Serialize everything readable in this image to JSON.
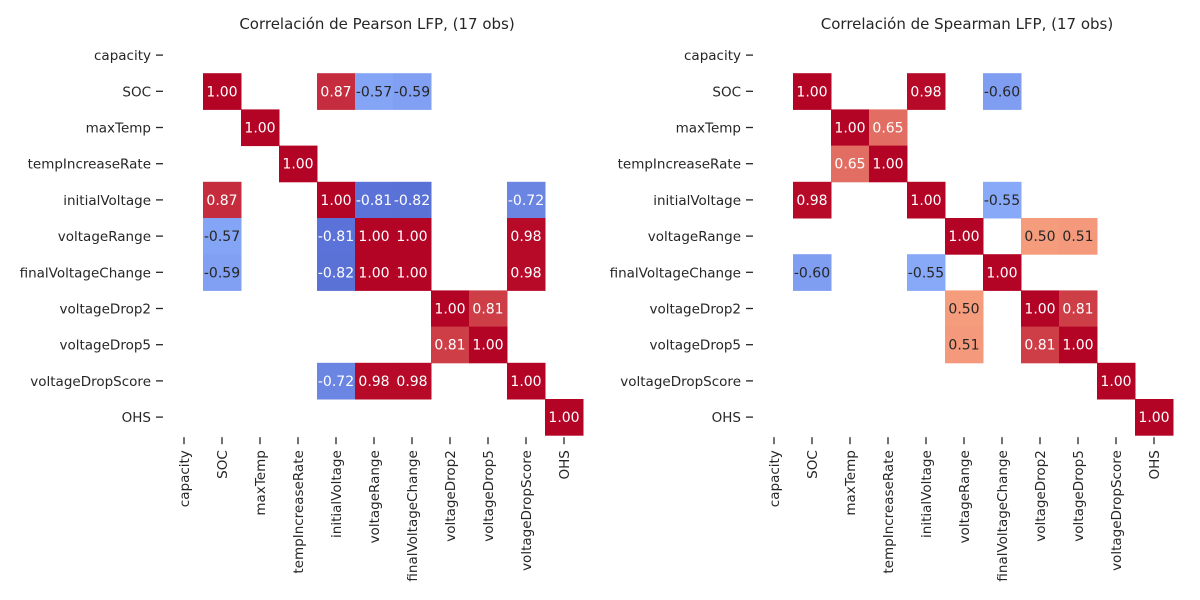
{
  "chart_data": [
    {
      "type": "heatmap",
      "title": "Correlación de Pearson LFP, (17 obs)",
      "categories": [
        "capacity",
        "SOC",
        "maxTemp",
        "tempIncreaseRate",
        "initialVoltage",
        "voltageRange",
        "finalVoltageChange",
        "voltageDrop2",
        "voltageDrop5",
        "voltageDropScore",
        "OHS"
      ],
      "colormap": "coolwarm",
      "vmin": -1,
      "vmax": 1,
      "grid": false,
      "legend": "none",
      "value_format": "2 decimals",
      "cells": [
        {
          "row": "SOC",
          "col": "SOC",
          "value": 1.0
        },
        {
          "row": "SOC",
          "col": "initialVoltage",
          "value": 0.87
        },
        {
          "row": "SOC",
          "col": "voltageRange",
          "value": -0.57
        },
        {
          "row": "SOC",
          "col": "finalVoltageChange",
          "value": -0.59
        },
        {
          "row": "maxTemp",
          "col": "maxTemp",
          "value": 1.0
        },
        {
          "row": "tempIncreaseRate",
          "col": "tempIncreaseRate",
          "value": 1.0
        },
        {
          "row": "initialVoltage",
          "col": "SOC",
          "value": 0.87
        },
        {
          "row": "initialVoltage",
          "col": "initialVoltage",
          "value": 1.0
        },
        {
          "row": "initialVoltage",
          "col": "voltageRange",
          "value": -0.81
        },
        {
          "row": "initialVoltage",
          "col": "finalVoltageChange",
          "value": -0.82
        },
        {
          "row": "initialVoltage",
          "col": "voltageDropScore",
          "value": -0.72
        },
        {
          "row": "voltageRange",
          "col": "SOC",
          "value": -0.57
        },
        {
          "row": "voltageRange",
          "col": "initialVoltage",
          "value": -0.81
        },
        {
          "row": "voltageRange",
          "col": "voltageRange",
          "value": 1.0
        },
        {
          "row": "voltageRange",
          "col": "finalVoltageChange",
          "value": 1.0
        },
        {
          "row": "voltageRange",
          "col": "voltageDropScore",
          "value": 0.98
        },
        {
          "row": "finalVoltageChange",
          "col": "SOC",
          "value": -0.59
        },
        {
          "row": "finalVoltageChange",
          "col": "initialVoltage",
          "value": -0.82
        },
        {
          "row": "finalVoltageChange",
          "col": "voltageRange",
          "value": 1.0
        },
        {
          "row": "finalVoltageChange",
          "col": "finalVoltageChange",
          "value": 1.0
        },
        {
          "row": "finalVoltageChange",
          "col": "voltageDropScore",
          "value": 0.98
        },
        {
          "row": "voltageDrop2",
          "col": "voltageDrop2",
          "value": 1.0
        },
        {
          "row": "voltageDrop2",
          "col": "voltageDrop5",
          "value": 0.81
        },
        {
          "row": "voltageDrop5",
          "col": "voltageDrop2",
          "value": 0.81
        },
        {
          "row": "voltageDrop5",
          "col": "voltageDrop5",
          "value": 1.0
        },
        {
          "row": "voltageDropScore",
          "col": "initialVoltage",
          "value": -0.72
        },
        {
          "row": "voltageDropScore",
          "col": "voltageRange",
          "value": 0.98
        },
        {
          "row": "voltageDropScore",
          "col": "finalVoltageChange",
          "value": 0.98
        },
        {
          "row": "voltageDropScore",
          "col": "voltageDropScore",
          "value": 1.0
        },
        {
          "row": "OHS",
          "col": "OHS",
          "value": 1.0
        }
      ]
    },
    {
      "type": "heatmap",
      "title": "Correlación de Spearman LFP, (17 obs)",
      "categories": [
        "capacity",
        "SOC",
        "maxTemp",
        "tempIncreaseRate",
        "initialVoltage",
        "voltageRange",
        "finalVoltageChange",
        "voltageDrop2",
        "voltageDrop5",
        "voltageDropScore",
        "OHS"
      ],
      "colormap": "coolwarm",
      "vmin": -1,
      "vmax": 1,
      "grid": false,
      "legend": "none",
      "value_format": "2 decimals",
      "cells": [
        {
          "row": "SOC",
          "col": "SOC",
          "value": 1.0
        },
        {
          "row": "SOC",
          "col": "initialVoltage",
          "value": 0.98
        },
        {
          "row": "SOC",
          "col": "finalVoltageChange",
          "value": -0.6
        },
        {
          "row": "maxTemp",
          "col": "maxTemp",
          "value": 1.0
        },
        {
          "row": "maxTemp",
          "col": "tempIncreaseRate",
          "value": 0.65
        },
        {
          "row": "tempIncreaseRate",
          "col": "maxTemp",
          "value": 0.65
        },
        {
          "row": "tempIncreaseRate",
          "col": "tempIncreaseRate",
          "value": 1.0
        },
        {
          "row": "initialVoltage",
          "col": "SOC",
          "value": 0.98
        },
        {
          "row": "initialVoltage",
          "col": "initialVoltage",
          "value": 1.0
        },
        {
          "row": "initialVoltage",
          "col": "finalVoltageChange",
          "value": -0.55
        },
        {
          "row": "voltageRange",
          "col": "voltageRange",
          "value": 1.0
        },
        {
          "row": "voltageRange",
          "col": "voltageDrop2",
          "value": 0.5
        },
        {
          "row": "voltageRange",
          "col": "voltageDrop5",
          "value": 0.51
        },
        {
          "row": "finalVoltageChange",
          "col": "SOC",
          "value": -0.6
        },
        {
          "row": "finalVoltageChange",
          "col": "initialVoltage",
          "value": -0.55
        },
        {
          "row": "finalVoltageChange",
          "col": "finalVoltageChange",
          "value": 1.0
        },
        {
          "row": "voltageDrop2",
          "col": "voltageRange",
          "value": 0.5
        },
        {
          "row": "voltageDrop2",
          "col": "voltageDrop2",
          "value": 1.0
        },
        {
          "row": "voltageDrop2",
          "col": "voltageDrop5",
          "value": 0.81
        },
        {
          "row": "voltageDrop5",
          "col": "voltageRange",
          "value": 0.51
        },
        {
          "row": "voltageDrop5",
          "col": "voltageDrop2",
          "value": 0.81
        },
        {
          "row": "voltageDrop5",
          "col": "voltageDrop5",
          "value": 1.0
        },
        {
          "row": "voltageDropScore",
          "col": "voltageDropScore",
          "value": 1.0
        },
        {
          "row": "OHS",
          "col": "OHS",
          "value": 1.0
        }
      ]
    }
  ]
}
